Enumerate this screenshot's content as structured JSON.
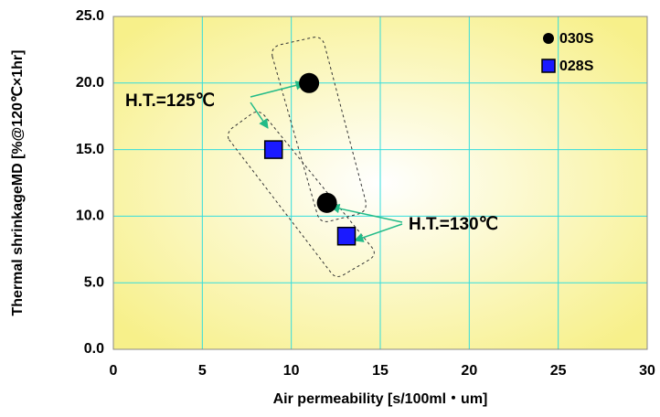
{
  "chart_data": {
    "type": "scatter",
    "xlabel": "Air permeability [s/100ml・um]",
    "ylabel": "Thermal shrinkageMD [%@120℃×1hr]",
    "xlim": [
      0,
      30
    ],
    "xticks": [
      0,
      5,
      10,
      15,
      20,
      25,
      30
    ],
    "ylim": [
      0,
      25
    ],
    "yticks": [
      {
        "value": 0,
        "label": "0.0"
      },
      {
        "value": 5,
        "label": "5.0"
      },
      {
        "value": 10,
        "label": "10.0"
      },
      {
        "value": 15,
        "label": "15.0"
      },
      {
        "value": 20,
        "label": "20.0"
      },
      {
        "value": 25,
        "label": "25.0"
      }
    ],
    "grid": true,
    "grid_color": "#33dddd",
    "legend": "upper right",
    "series": [
      {
        "name": "030S",
        "color": "#000000",
        "marker": "circle",
        "x": [
          11,
          12
        ],
        "values": [
          20,
          11
        ]
      },
      {
        "name": "028S",
        "color": "#1a1aff",
        "marker": "square",
        "x": [
          9,
          13.1
        ],
        "values": [
          15,
          8.5
        ]
      }
    ],
    "annotations": [
      "H.T.=125℃",
      "H.T.=130℃"
    ]
  }
}
